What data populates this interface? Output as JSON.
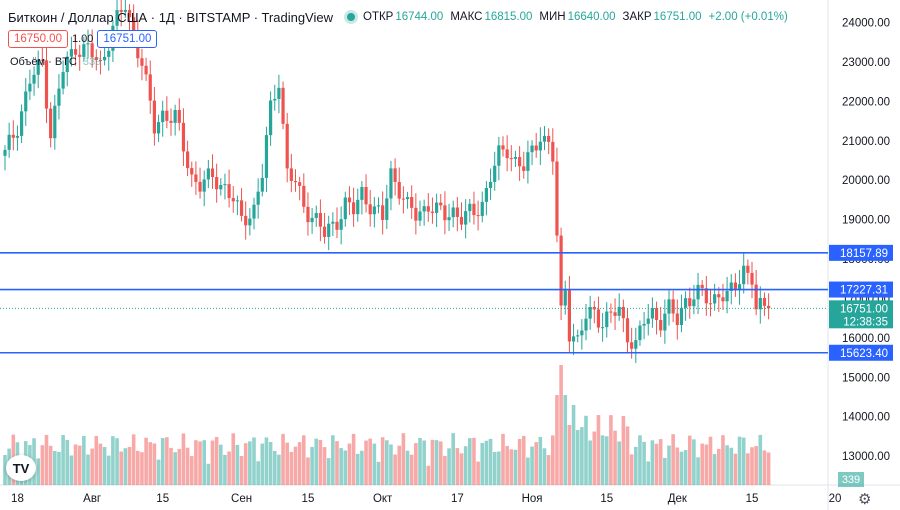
{
  "header": {
    "symbol": "Биткоин / Доллар США · 1Д · BITSTAMP · TradingView",
    "open_label": "ОТКР",
    "open": "16744.00",
    "high_label": "МАКС",
    "high": "16815.00",
    "low_label": "МИН",
    "low": "16640.00",
    "close_label": "ЗАКР",
    "close": "16751.00",
    "change": "+2.00 (+0.01%)"
  },
  "price_boxes": {
    "sell": "16750.00",
    "spread": "1.00",
    "buy": "16751.00"
  },
  "volume_legend": {
    "label": "Объём · BTC",
    "value": "339"
  },
  "logo_text": "TV",
  "icons": {
    "settings": "gear-icon"
  },
  "colors": {
    "up": "#26a69a",
    "down": "#ef5350",
    "level_line": "#2962ff",
    "level_label_bg": "#2962ff",
    "last_price_bg": "#26a69a"
  },
  "chart_data": {
    "type": "candlestick",
    "price_axis": {
      "ticks": [
        24000,
        23000,
        22000,
        21000,
        20000,
        19000,
        18000,
        17000,
        16000,
        15000,
        14000,
        13000
      ],
      "tick_labels": [
        "24000.00",
        "23000.00",
        "22000.00",
        "21000.00",
        "20000.00",
        "19000.00",
        "18000.00",
        "17000.00",
        "16000.00",
        "15000.00",
        "14000.00",
        "13000.00"
      ]
    },
    "time_axis": {
      "labels": [
        "18",
        "Авг",
        "15",
        "Сен",
        "15",
        "Окт",
        "17",
        "Ноя",
        "15",
        "Дек",
        "15",
        "20"
      ]
    },
    "horizontal_levels": [
      {
        "value": 18157.89,
        "label": "18157.89"
      },
      {
        "value": 17227.31,
        "label": "17227.31"
      },
      {
        "value": 15623.4,
        "label": "15623.40"
      }
    ],
    "last_price": {
      "value": 16751.0,
      "label": "16751.00",
      "countdown": "12:38:35"
    },
    "volume_last": {
      "label": "339"
    },
    "series": [
      {
        "name": "Биткоин / Доллар США",
        "close_path": [
          [
            0,
            20650
          ],
          [
            3,
            21400
          ],
          [
            6,
            22500
          ],
          [
            9,
            23000
          ],
          [
            11,
            21200
          ],
          [
            14,
            22800
          ],
          [
            17,
            23400
          ],
          [
            20,
            23300
          ],
          [
            23,
            22900
          ],
          [
            26,
            23900
          ],
          [
            29,
            24400
          ],
          [
            31,
            23700
          ],
          [
            33,
            23000
          ],
          [
            36,
            21300
          ],
          [
            38,
            21700
          ],
          [
            41,
            21600
          ],
          [
            43,
            20800
          ],
          [
            45,
            20100
          ],
          [
            47,
            19900
          ],
          [
            50,
            20050
          ],
          [
            53,
            19850
          ],
          [
            55,
            19500
          ],
          [
            57,
            18950
          ],
          [
            60,
            19300
          ],
          [
            62,
            20150
          ],
          [
            64,
            21800
          ],
          [
            66,
            22600
          ],
          [
            68,
            20200
          ],
          [
            70,
            19900
          ],
          [
            72,
            19350
          ],
          [
            75,
            19000
          ],
          [
            77,
            18600
          ],
          [
            80,
            19000
          ],
          [
            82,
            19400
          ],
          [
            84,
            19200
          ],
          [
            86,
            19700
          ],
          [
            89,
            19250
          ],
          [
            91,
            19000
          ],
          [
            93,
            20200
          ],
          [
            95,
            19800
          ],
          [
            97,
            19300
          ],
          [
            99,
            19100
          ],
          [
            102,
            19400
          ],
          [
            104,
            19200
          ],
          [
            106,
            19100
          ],
          [
            108,
            19250
          ],
          [
            110,
            19050
          ],
          [
            113,
            19150
          ],
          [
            115,
            19450
          ],
          [
            117,
            20100
          ],
          [
            119,
            20600
          ],
          [
            121,
            20800
          ],
          [
            123,
            20500
          ],
          [
            125,
            20300
          ],
          [
            127,
            20700
          ],
          [
            129,
            21200
          ],
          [
            131,
            20900
          ],
          [
            132,
            20550
          ],
          [
            133,
            18500
          ],
          [
            134,
            16600
          ],
          [
            135,
            17300
          ],
          [
            136,
            16200
          ],
          [
            138,
            15900
          ],
          [
            140,
            16500
          ],
          [
            142,
            16700
          ],
          [
            144,
            16400
          ],
          [
            146,
            16550
          ],
          [
            148,
            16700
          ],
          [
            150,
            16100
          ],
          [
            152,
            15800
          ],
          [
            154,
            16400
          ],
          [
            156,
            16650
          ],
          [
            158,
            16450
          ],
          [
            160,
            16700
          ],
          [
            162,
            16450
          ],
          [
            164,
            17000
          ],
          [
            166,
            17050
          ],
          [
            168,
            17100
          ],
          [
            170,
            16950
          ],
          [
            172,
            17150
          ],
          [
            174,
            17000
          ],
          [
            176,
            17300
          ],
          [
            178,
            17800
          ],
          [
            180,
            17500
          ],
          [
            181,
            16650
          ],
          [
            183,
            16800
          ],
          [
            184,
            16751
          ]
        ]
      }
    ],
    "volume": {
      "series_name": "Объём · BTC",
      "relative_heights": "derived"
    },
    "grid": false,
    "legend": "top-left"
  }
}
